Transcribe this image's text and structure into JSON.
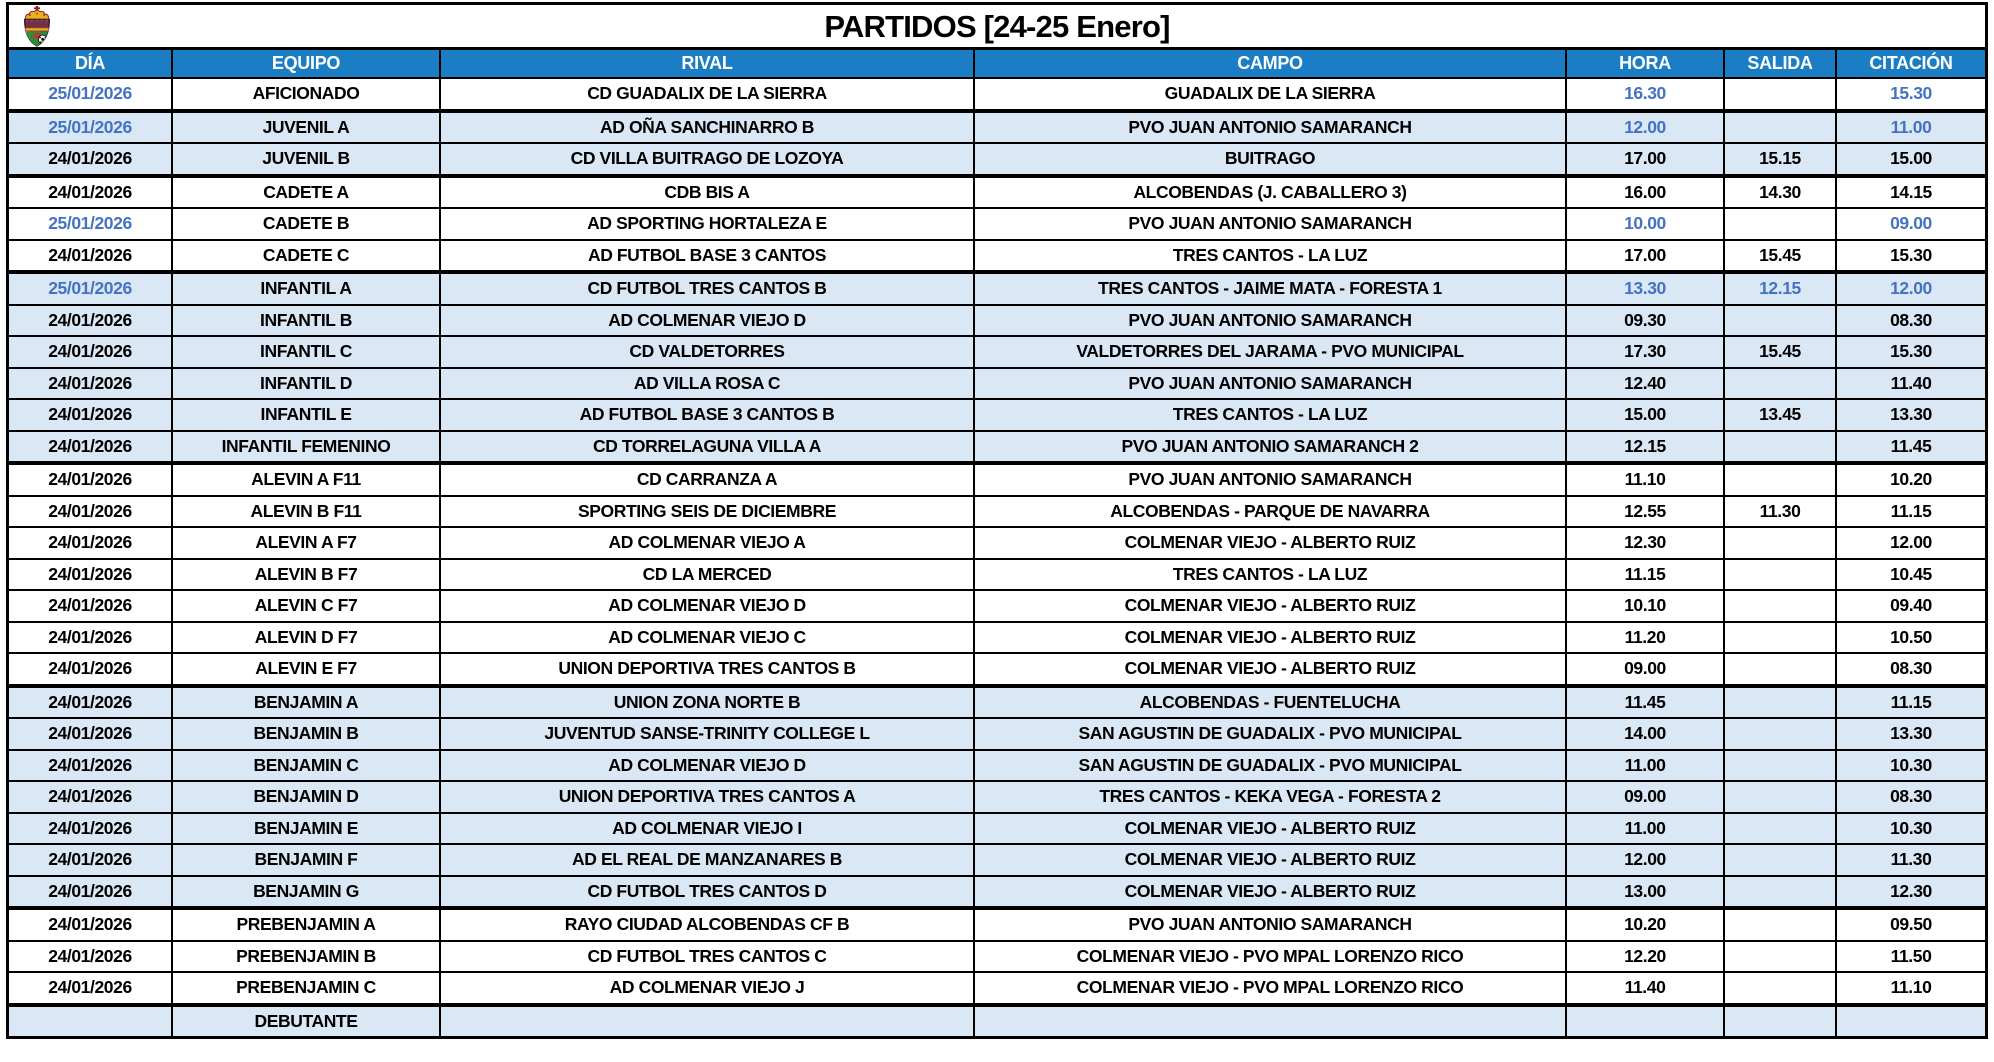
{
  "title": "PARTIDOS [24-25 Enero]",
  "logo_icon": "club-crest",
  "colors": {
    "header_bg": "#1b7ec4",
    "header_text": "#ffffff",
    "shaded_row_bg": "#dae7f4",
    "sunday_text": "#4472c4",
    "border": "#000000"
  },
  "columns": [
    "DÍA",
    "EQUIPO",
    "RIVAL",
    "CAMPO",
    "HORA",
    "SALIDA",
    "CITACIÓN"
  ],
  "rows": [
    {
      "dia": "25/01/2026",
      "equipo": "AFICIONADO",
      "rival": "CD GUADALIX DE LA SIERRA",
      "campo": "GUADALIX DE LA SIERRA",
      "hora": "16.30",
      "salida": "",
      "citacion": "15.30",
      "shaded": false,
      "sunday": true,
      "group_start": false
    },
    {
      "dia": "25/01/2026",
      "equipo": "JUVENIL A",
      "rival": "AD OÑA SANCHINARRO B",
      "campo": "PVO JUAN ANTONIO SAMARANCH",
      "hora": "12.00",
      "salida": "",
      "citacion": "11.00",
      "shaded": true,
      "sunday": true,
      "group_start": true
    },
    {
      "dia": "24/01/2026",
      "equipo": "JUVENIL B",
      "rival": "CD VILLA BUITRAGO DE LOZOYA",
      "campo": "BUITRAGO",
      "hora": "17.00",
      "salida": "15.15",
      "citacion": "15.00",
      "shaded": true,
      "sunday": false,
      "group_start": false
    },
    {
      "dia": "24/01/2026",
      "equipo": "CADETE A",
      "rival": "CDB BIS A",
      "campo": "ALCOBENDAS (J. CABALLERO 3)",
      "hora": "16.00",
      "salida": "14.30",
      "citacion": "14.15",
      "shaded": false,
      "sunday": false,
      "group_start": true
    },
    {
      "dia": "25/01/2026",
      "equipo": "CADETE B",
      "rival": "AD SPORTING HORTALEZA E",
      "campo": "PVO JUAN ANTONIO SAMARANCH",
      "hora": "10.00",
      "salida": "",
      "citacion": "09.00",
      "shaded": false,
      "sunday": true,
      "group_start": false
    },
    {
      "dia": "24/01/2026",
      "equipo": "CADETE C",
      "rival": "AD FUTBOL BASE 3 CANTOS",
      "campo": "TRES CANTOS - LA LUZ",
      "hora": "17.00",
      "salida": "15.45",
      "citacion": "15.30",
      "shaded": false,
      "sunday": false,
      "group_start": false
    },
    {
      "dia": "25/01/2026",
      "equipo": "INFANTIL A",
      "rival": "CD FUTBOL TRES CANTOS B",
      "campo": "TRES CANTOS - JAIME MATA - FORESTA 1",
      "hora": "13.30",
      "salida": "12.15",
      "citacion": "12.00",
      "shaded": true,
      "sunday": true,
      "group_start": true
    },
    {
      "dia": "24/01/2026",
      "equipo": "INFANTIL B",
      "rival": "AD COLMENAR VIEJO D",
      "campo": "PVO JUAN ANTONIO SAMARANCH",
      "hora": "09.30",
      "salida": "",
      "citacion": "08.30",
      "shaded": true,
      "sunday": false,
      "group_start": false
    },
    {
      "dia": "24/01/2026",
      "equipo": "INFANTIL C",
      "rival": "CD VALDETORRES",
      "campo": "VALDETORRES DEL JARAMA - PVO MUNICIPAL",
      "hora": "17.30",
      "salida": "15.45",
      "citacion": "15.30",
      "shaded": true,
      "sunday": false,
      "group_start": false
    },
    {
      "dia": "24/01/2026",
      "equipo": "INFANTIL D",
      "rival": "AD VILLA ROSA C",
      "campo": "PVO JUAN ANTONIO SAMARANCH",
      "hora": "12.40",
      "salida": "",
      "citacion": "11.40",
      "shaded": true,
      "sunday": false,
      "group_start": false
    },
    {
      "dia": "24/01/2026",
      "equipo": "INFANTIL E",
      "rival": "AD FUTBOL BASE 3 CANTOS B",
      "campo": "TRES CANTOS - LA LUZ",
      "hora": "15.00",
      "salida": "13.45",
      "citacion": "13.30",
      "shaded": true,
      "sunday": false,
      "group_start": false
    },
    {
      "dia": "24/01/2026",
      "equipo": "INFANTIL FEMENINO",
      "rival": "CD TORRELAGUNA VILLA A",
      "campo": "PVO JUAN ANTONIO SAMARANCH 2",
      "hora": "12.15",
      "salida": "",
      "citacion": "11.45",
      "shaded": true,
      "sunday": false,
      "group_start": false
    },
    {
      "dia": "24/01/2026",
      "equipo": "ALEVIN A F11",
      "rival": "CD CARRANZA A",
      "campo": "PVO JUAN ANTONIO SAMARANCH",
      "hora": "11.10",
      "salida": "",
      "citacion": "10.20",
      "shaded": false,
      "sunday": false,
      "group_start": true
    },
    {
      "dia": "24/01/2026",
      "equipo": "ALEVIN B F11",
      "rival": "SPORTING SEIS DE DICIEMBRE",
      "campo": "ALCOBENDAS - PARQUE DE NAVARRA",
      "hora": "12.55",
      "salida": "11.30",
      "citacion": "11.15",
      "shaded": false,
      "sunday": false,
      "group_start": false
    },
    {
      "dia": "24/01/2026",
      "equipo": "ALEVIN A F7",
      "rival": "AD COLMENAR VIEJO A",
      "campo": "COLMENAR VIEJO - ALBERTO RUIZ",
      "hora": "12.30",
      "salida": "",
      "citacion": "12.00",
      "shaded": false,
      "sunday": false,
      "group_start": false
    },
    {
      "dia": "24/01/2026",
      "equipo": "ALEVIN B F7",
      "rival": "CD LA MERCED",
      "campo": "TRES CANTOS - LA LUZ",
      "hora": "11.15",
      "salida": "",
      "citacion": "10.45",
      "shaded": false,
      "sunday": false,
      "group_start": false
    },
    {
      "dia": "24/01/2026",
      "equipo": "ALEVIN C F7",
      "rival": "AD COLMENAR VIEJO D",
      "campo": "COLMENAR VIEJO - ALBERTO RUIZ",
      "hora": "10.10",
      "salida": "",
      "citacion": "09.40",
      "shaded": false,
      "sunday": false,
      "group_start": false
    },
    {
      "dia": "24/01/2026",
      "equipo": "ALEVIN D F7",
      "rival": "AD COLMENAR VIEJO C",
      "campo": "COLMENAR VIEJO - ALBERTO RUIZ",
      "hora": "11.20",
      "salida": "",
      "citacion": "10.50",
      "shaded": false,
      "sunday": false,
      "group_start": false
    },
    {
      "dia": "24/01/2026",
      "equipo": "ALEVIN E F7",
      "rival": "UNION DEPORTIVA TRES CANTOS B",
      "campo": "COLMENAR VIEJO - ALBERTO RUIZ",
      "hora": "09.00",
      "salida": "",
      "citacion": "08.30",
      "shaded": false,
      "sunday": false,
      "group_start": false
    },
    {
      "dia": "24/01/2026",
      "equipo": "BENJAMIN A",
      "rival": "UNION ZONA NORTE B",
      "campo": "ALCOBENDAS - FUENTELUCHA",
      "hora": "11.45",
      "salida": "",
      "citacion": "11.15",
      "shaded": true,
      "sunday": false,
      "group_start": true
    },
    {
      "dia": "24/01/2026",
      "equipo": "BENJAMIN B",
      "rival": "JUVENTUD SANSE-TRINITY COLLEGE L",
      "campo": "SAN AGUSTIN DE GUADALIX - PVO MUNICIPAL",
      "hora": "14.00",
      "salida": "",
      "citacion": "13.30",
      "shaded": true,
      "sunday": false,
      "group_start": false
    },
    {
      "dia": "24/01/2026",
      "equipo": "BENJAMIN C",
      "rival": "AD COLMENAR VIEJO D",
      "campo": "SAN AGUSTIN DE GUADALIX - PVO MUNICIPAL",
      "hora": "11.00",
      "salida": "",
      "citacion": "10.30",
      "shaded": true,
      "sunday": false,
      "group_start": false
    },
    {
      "dia": "24/01/2026",
      "equipo": "BENJAMIN D",
      "rival": "UNION DEPORTIVA TRES CANTOS A",
      "campo": "TRES CANTOS - KEKA VEGA - FORESTA 2",
      "hora": "09.00",
      "salida": "",
      "citacion": "08.30",
      "shaded": true,
      "sunday": false,
      "group_start": false
    },
    {
      "dia": "24/01/2026",
      "equipo": "BENJAMIN E",
      "rival": "AD COLMENAR VIEJO I",
      "campo": "COLMENAR VIEJO - ALBERTO RUIZ",
      "hora": "11.00",
      "salida": "",
      "citacion": "10.30",
      "shaded": true,
      "sunday": false,
      "group_start": false
    },
    {
      "dia": "24/01/2026",
      "equipo": "BENJAMIN F",
      "rival": "AD EL REAL DE MANZANARES B",
      "campo": "COLMENAR VIEJO - ALBERTO RUIZ",
      "hora": "12.00",
      "salida": "",
      "citacion": "11.30",
      "shaded": true,
      "sunday": false,
      "group_start": false
    },
    {
      "dia": "24/01/2026",
      "equipo": "BENJAMIN G",
      "rival": "CD FUTBOL TRES CANTOS D",
      "campo": "COLMENAR VIEJO - ALBERTO RUIZ",
      "hora": "13.00",
      "salida": "",
      "citacion": "12.30",
      "shaded": true,
      "sunday": false,
      "group_start": false
    },
    {
      "dia": "24/01/2026",
      "equipo": "PREBENJAMIN A",
      "rival": "RAYO CIUDAD ALCOBENDAS CF B",
      "campo": "PVO JUAN ANTONIO SAMARANCH",
      "hora": "10.20",
      "salida": "",
      "citacion": "09.50",
      "shaded": false,
      "sunday": false,
      "group_start": true
    },
    {
      "dia": "24/01/2026",
      "equipo": "PREBENJAMIN B",
      "rival": "CD FUTBOL TRES CANTOS C",
      "campo": "COLMENAR VIEJO - PVO MPAL LORENZO RICO",
      "hora": "12.20",
      "salida": "",
      "citacion": "11.50",
      "shaded": false,
      "sunday": false,
      "group_start": false
    },
    {
      "dia": "24/01/2026",
      "equipo": "PREBENJAMIN C",
      "rival": "AD COLMENAR VIEJO J",
      "campo": "COLMENAR VIEJO - PVO MPAL LORENZO RICO",
      "hora": "11.40",
      "salida": "",
      "citacion": "11.10",
      "shaded": false,
      "sunday": false,
      "group_start": false
    },
    {
      "dia": "",
      "equipo": "DEBUTANTE",
      "rival": "",
      "campo": "",
      "hora": "",
      "salida": "",
      "citacion": "",
      "shaded": true,
      "sunday": false,
      "group_start": true
    }
  ]
}
